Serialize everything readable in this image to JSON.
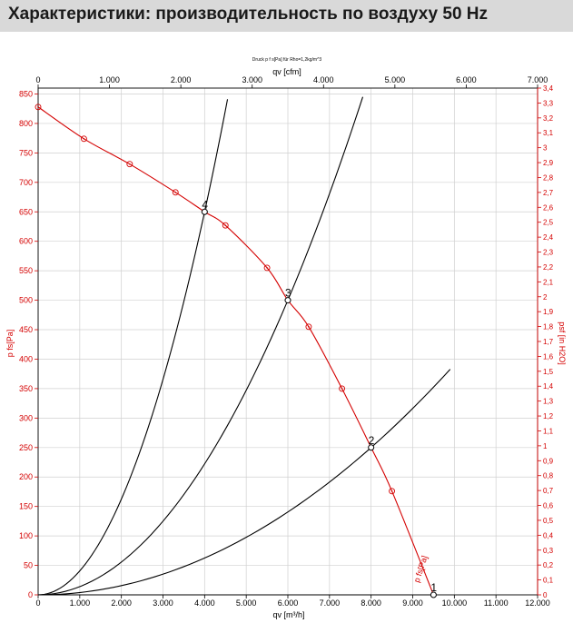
{
  "header": {
    "title": "Характеристики: производительность по воздуху 50 Hz"
  },
  "chart_data": {
    "type": "line",
    "subtitle": "Druck p f s[Pa] für Rho=1,2kg/m^3",
    "xlabel": "qv [m³/h]",
    "x2label": "qv [cfm]",
    "ylabel": "p fs[Pa]",
    "y2label": "psf [in H2O]",
    "xlim": [
      0,
      12000
    ],
    "ylim": [
      0,
      860
    ],
    "x2lim": [
      0,
      7000
    ],
    "y2lim": [
      0,
      3.4
    ],
    "x_ticks": [
      "0",
      "1.000",
      "2.000",
      "3.000",
      "4.000",
      "5.000",
      "6.000",
      "7.000",
      "8.000",
      "9.000",
      "10.000",
      "11.000",
      "12.000"
    ],
    "x2_ticks": [
      "0",
      "1.000",
      "2.000",
      "3.000",
      "4.000",
      "5.000",
      "6.000",
      "7.000"
    ],
    "y_ticks": [
      "0",
      "50",
      "100",
      "150",
      "200",
      "250",
      "300",
      "350",
      "400",
      "450",
      "500",
      "550",
      "600",
      "650",
      "700",
      "750",
      "800",
      "850"
    ],
    "y2_ticks": [
      "0",
      "0,1",
      "0,2",
      "0,3",
      "0,4",
      "0,5",
      "0,6",
      "0,7",
      "0,8",
      "0,9",
      "1",
      "1,1",
      "1,2",
      "1,3",
      "1,4",
      "1,5",
      "1,6",
      "1,7",
      "1,8",
      "1,9",
      "2",
      "2,1",
      "2,2",
      "2,3",
      "2,4",
      "2,5",
      "2,6",
      "2,7",
      "2,8",
      "2,9",
      "3",
      "3,1",
      "3,2",
      "3,3",
      "3,4"
    ],
    "fan_curve": {
      "name": "p fs[Pa]",
      "color": "#d40000",
      "x": [
        0,
        1100,
        2200,
        3300,
        4000,
        4500,
        5500,
        6000,
        6500,
        7300,
        8000,
        8500,
        9500
      ],
      "y": [
        828,
        774,
        731,
        683,
        650,
        627,
        555,
        500,
        455,
        350,
        250,
        176,
        0
      ]
    },
    "markers_x": [
      0,
      1100,
      2200,
      3300,
      4500,
      5500,
      6500,
      7300,
      8500
    ],
    "system_curves": [
      {
        "name": "1",
        "color": "#000000",
        "x": [
          0,
          9500
        ],
        "k": 0
      },
      {
        "name": "2",
        "color": "#000000",
        "x": [
          0,
          9900
        ],
        "k": 3.906e-06
      },
      {
        "name": "3",
        "color": "#000000",
        "x": [
          0,
          7800
        ],
        "k": 1.389e-05
      },
      {
        "name": "4",
        "color": "#000000",
        "x": [
          0,
          4550
        ],
        "k": 4.0625e-05
      }
    ],
    "operating_points": [
      {
        "label": "1",
        "x": 9500,
        "y": 0
      },
      {
        "label": "2",
        "x": 8000,
        "y": 250
      },
      {
        "label": "3",
        "x": 6000,
        "y": 500
      },
      {
        "label": "4",
        "x": 4000,
        "y": 650
      }
    ]
  }
}
